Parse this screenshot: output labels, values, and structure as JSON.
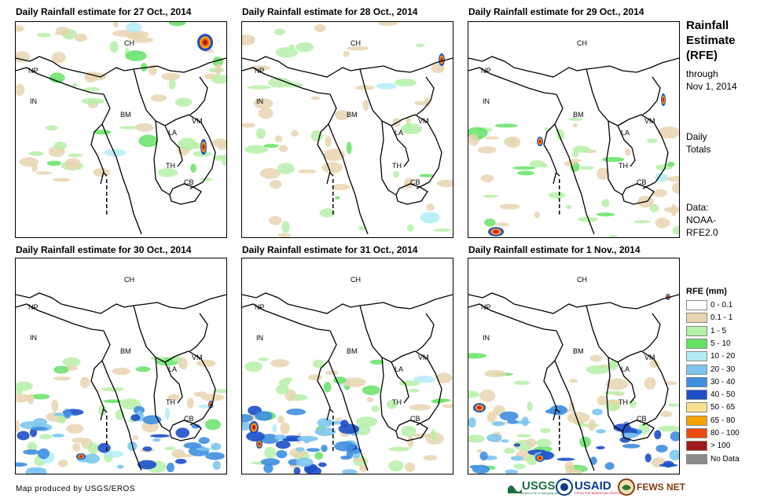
{
  "panels": [
    {
      "title": "Daily Rainfall estimate for 27 Oct., 2014"
    },
    {
      "title": "Daily Rainfall estimate for 28 Oct., 2014"
    },
    {
      "title": "Daily Rainfall estimate for 29 Oct., 2014"
    },
    {
      "title": "Daily Rainfall estimate for 30 Oct., 2014"
    },
    {
      "title": "Daily Rainfall estimate for 31 Oct., 2014"
    },
    {
      "title": "Daily Rainfall estimate for 1 Nov., 2014"
    }
  ],
  "country_labels": {
    "ch": "CH",
    "np": "NP",
    "in": "IN",
    "bm": "BM",
    "la": "LA",
    "vm": "VM",
    "th": "TH",
    "cb": "CB"
  },
  "sidebar": {
    "title_line1": "Rainfall",
    "title_line2": "Estimate",
    "title_line3": "(RFE)",
    "through_line1": "through",
    "through_line2": "Nov 1, 2014",
    "daily_line1": "Daily",
    "daily_line2": "Totals",
    "data_line1": "Data:",
    "data_line2": "NOAA-",
    "data_line3": "RFE2.0"
  },
  "legend": {
    "title": "RFE (mm)",
    "items": [
      {
        "label": "0 - 0.1",
        "color": "#ffffff"
      },
      {
        "label": "0.1 - 1",
        "color": "#e8d5b0"
      },
      {
        "label": "1 - 5",
        "color": "#b6f0a8"
      },
      {
        "label": "5 - 10",
        "color": "#66e266"
      },
      {
        "label": "10 - 20",
        "color": "#b4ecf4"
      },
      {
        "label": "20 - 30",
        "color": "#7ec6f0"
      },
      {
        "label": "30 - 40",
        "color": "#3f8ee0"
      },
      {
        "label": "40 - 50",
        "color": "#1c4fc8"
      },
      {
        "label": "50 - 65",
        "color": "#f7e08a"
      },
      {
        "label": "65 - 80",
        "color": "#f5a100"
      },
      {
        "label": "80 - 100",
        "color": "#f04a10"
      },
      {
        "label": "> 100",
        "color": "#a01818"
      },
      {
        "label": "No Data",
        "color": "#8c8c8c"
      }
    ]
  },
  "footer": {
    "credit": "Map produced by USGS/EROS",
    "usgs": "USGS",
    "usgs_tagline": "science for a changing world",
    "usaid": "USAID",
    "usaid_tagline": "FROM THE AMERICAN PEOPLE",
    "fewsnet": "FEWS NET"
  }
}
